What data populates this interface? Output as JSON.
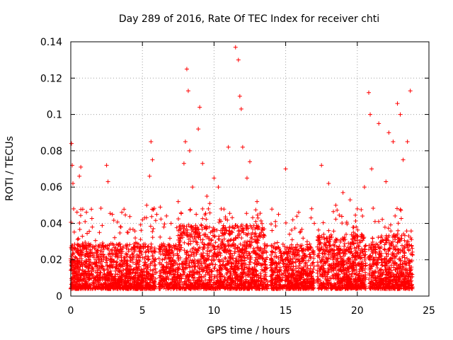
{
  "chart_data": {
    "type": "scatter",
    "title": "Day 289 of 2016, Rate Of TEC Index for receiver chti",
    "xlabel": "GPS time / hours",
    "ylabel": "ROTI / TECUs",
    "xlim": [
      0,
      25
    ],
    "ylim": [
      0,
      0.14
    ],
    "xticks": [
      0,
      5,
      10,
      15,
      20,
      25
    ],
    "yticks": [
      0,
      0.02,
      0.04,
      0.06,
      0.08,
      0.1,
      0.12,
      0.14
    ],
    "xtick_labels": [
      "0",
      "5",
      "10",
      "15",
      "20",
      "25"
    ],
    "ytick_labels": [
      "0",
      "0.02",
      "0.04",
      "0.06",
      "0.08",
      "0.1",
      "0.12",
      "0.14"
    ],
    "grid": true,
    "marker": "plus",
    "color": "#ff0000",
    "series": [
      {
        "name": "ROTI",
        "x": [
          0.05,
          0.1,
          0.15,
          0.2,
          0.6,
          0.7,
          1.0,
          1.5,
          2.0,
          2.5,
          2.6,
          2.9,
          3.5,
          4.0,
          4.5,
          5.0,
          5.3,
          5.5,
          5.6,
          5.7,
          6.0,
          6.5,
          7.0,
          7.5,
          7.9,
          8.0,
          8.1,
          8.2,
          8.3,
          8.5,
          8.9,
          9.0,
          9.2,
          9.5,
          9.7,
          10.0,
          10.3,
          10.5,
          11.0,
          11.5,
          11.7,
          11.8,
          11.9,
          12.0,
          12.3,
          12.5,
          13.0,
          13.5,
          14.0,
          14.5,
          15.0,
          15.5,
          16.0,
          16.5,
          17.0,
          17.5,
          18.0,
          18.5,
          19.0,
          19.5,
          20.0,
          20.5,
          20.8,
          20.9,
          21.0,
          21.5,
          22.0,
          22.2,
          22.5,
          22.8,
          23.0,
          23.2,
          23.5,
          23.7
        ],
        "y": [
          0.084,
          0.072,
          0.062,
          0.048,
          0.066,
          0.071,
          0.041,
          0.038,
          0.035,
          0.072,
          0.063,
          0.045,
          0.038,
          0.035,
          0.032,
          0.042,
          0.05,
          0.066,
          0.085,
          0.075,
          0.045,
          0.038,
          0.04,
          0.052,
          0.073,
          0.085,
          0.125,
          0.113,
          0.08,
          0.06,
          0.092,
          0.104,
          0.073,
          0.055,
          0.051,
          0.065,
          0.06,
          0.048,
          0.082,
          0.137,
          0.13,
          0.11,
          0.103,
          0.082,
          0.065,
          0.074,
          0.052,
          0.037,
          0.028,
          0.045,
          0.07,
          0.042,
          0.035,
          0.03,
          0.04,
          0.072,
          0.062,
          0.05,
          0.057,
          0.053,
          0.048,
          0.06,
          0.112,
          0.1,
          0.07,
          0.095,
          0.063,
          0.09,
          0.085,
          0.106,
          0.1,
          0.075,
          0.085,
          0.113
        ]
      }
    ]
  }
}
